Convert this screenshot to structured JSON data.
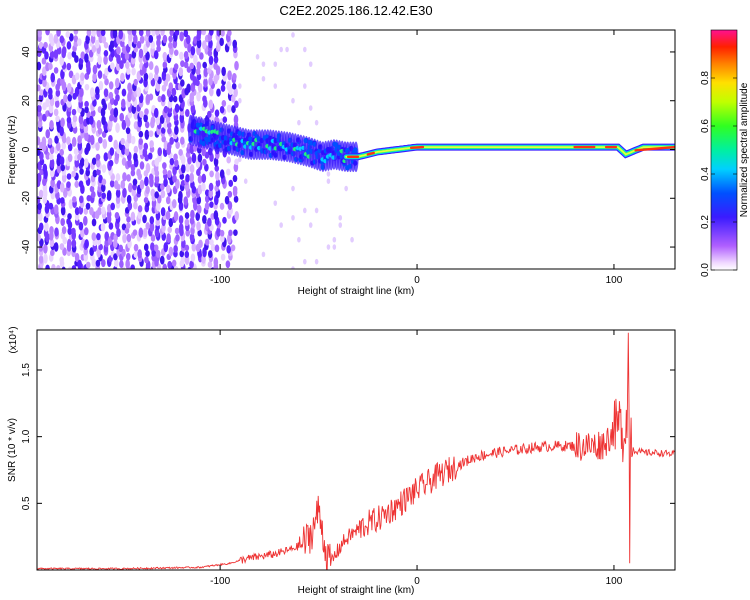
{
  "title": "C2E2.2025.186.12.42.E30",
  "chart_data": [
    {
      "type": "heatmap",
      "xlabel": "Height of straight line (km)",
      "ylabel": "Frequency (Hz)",
      "xlim": [
        -193,
        131
      ],
      "ylim": [
        -49,
        49
      ],
      "xticks": [
        -100,
        0,
        100
      ],
      "xtick_labels": [
        "-100",
        "0",
        "100"
      ],
      "yticks": [
        -40,
        -20,
        0,
        20,
        40
      ],
      "ytick_labels": [
        "-40",
        "-20",
        "0",
        "20",
        "40"
      ],
      "colorbar": {
        "label": "Normalized spectral amplitude",
        "range": [
          0,
          1
        ],
        "ticks": [
          0.0,
          0.2,
          0.4,
          0.6,
          0.8
        ],
        "tick_labels": [
          "0.0",
          "0.2",
          "0.4",
          "0.6",
          "0.8"
        ]
      },
      "ridge": {
        "x": [
          -115,
          -105,
          -95,
          -85,
          -75,
          -65,
          -55,
          -48,
          -42,
          -36,
          -30,
          -20,
          -10,
          0,
          20,
          50,
          80,
          95,
          102,
          106,
          115,
          131
        ],
        "frequency": [
          8,
          6,
          4,
          2,
          2,
          1,
          -1,
          -3,
          -2,
          -3,
          -3,
          -1,
          0,
          1,
          1,
          1,
          1,
          1,
          1,
          -2,
          1,
          1
        ]
      }
    },
    {
      "type": "line",
      "xlabel": "Height of straight line (km)",
      "ylabel": "SNR (10 * v/v)",
      "y_multiplier": "(x10⁴)",
      "xlim": [
        -193,
        131
      ],
      "ylim": [
        0,
        1.8
      ],
      "xticks": [
        -100,
        0,
        100
      ],
      "xtick_labels": [
        "-100",
        "0",
        "100"
      ],
      "yticks": [
        0.5,
        1.0,
        1.5
      ],
      "ytick_labels": [
        "0.5",
        "1.0",
        "1.5"
      ],
      "series": [
        {
          "color": "#ee3333",
          "x": [
            -193,
            -150,
            -110,
            -95,
            -88,
            -80,
            -72,
            -65,
            -60,
            -56,
            -53,
            -50,
            -48,
            -46,
            -44,
            -42,
            -38,
            -34,
            -30,
            -25,
            -20,
            -10,
            0,
            10,
            20,
            30,
            40,
            50,
            60,
            70,
            80,
            90,
            95,
            100,
            103,
            105,
            107,
            110,
            115,
            120,
            131
          ],
          "y": [
            0.01,
            0.01,
            0.02,
            0.05,
            0.08,
            0.1,
            0.12,
            0.15,
            0.18,
            0.22,
            0.3,
            0.45,
            0.3,
            0.1,
            0.05,
            0.1,
            0.2,
            0.26,
            0.3,
            0.35,
            0.38,
            0.48,
            0.6,
            0.7,
            0.78,
            0.85,
            0.88,
            0.9,
            0.92,
            0.93,
            0.93,
            0.93,
            0.95,
            1.05,
            1.1,
            1.0,
            1.25,
            0.9,
            0.88,
            0.88,
            0.87
          ]
        }
      ]
    }
  ]
}
